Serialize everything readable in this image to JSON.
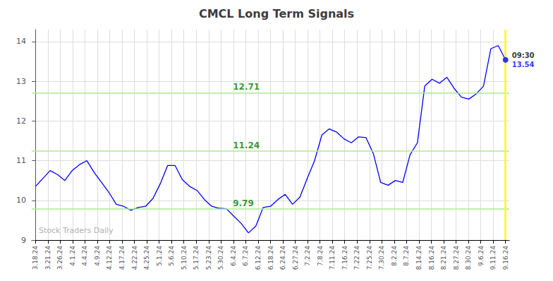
{
  "chart_data": {
    "type": "line",
    "title": "CMCL Long Term Signals",
    "x": [
      0,
      0.59375,
      1.1875,
      1.78125,
      2.375,
      2.96875,
      3.5625,
      4.15625,
      4.75,
      5.34375,
      5.9375,
      6.53125,
      7.125,
      7.71875,
      8.3125,
      8.90625,
      9.5,
      10.09375,
      10.6875,
      11.28125,
      11.875,
      12.46875,
      13.0625,
      13.65625,
      14.25,
      14.84375,
      15.4375,
      16.03125,
      16.625,
      17.21875,
      17.8125,
      18.40625,
      19,
      19.59375,
      20.1875,
      20.78125,
      21.375,
      21.96875,
      22.5625,
      23.15625,
      23.75,
      24.34375,
      24.9375,
      25.53125,
      26.125,
      26.71875,
      27.3125,
      27.90625,
      28.5,
      29.09375,
      29.6875,
      30.28125,
      30.875,
      31.46875,
      32.0625,
      32.65625,
      33.25,
      33.84375,
      34.4375,
      35.03125,
      35.625,
      36.21875,
      36.8125,
      37.40625,
      38
    ],
    "values": [
      10.35,
      10.55,
      10.75,
      10.65,
      10.5,
      10.75,
      10.9,
      11.0,
      10.7,
      10.45,
      10.2,
      9.9,
      9.85,
      9.75,
      9.82,
      9.85,
      10.05,
      10.42,
      10.88,
      10.88,
      10.52,
      10.35,
      10.25,
      10.02,
      9.85,
      9.8,
      9.79,
      9.6,
      9.42,
      9.18,
      9.35,
      9.82,
      9.85,
      10.02,
      10.15,
      9.9,
      10.08,
      10.55,
      11.0,
      11.65,
      11.8,
      11.72,
      11.55,
      11.45,
      11.6,
      11.58,
      11.18,
      10.45,
      10.38,
      10.5,
      10.45,
      11.15,
      11.45,
      12.88,
      13.05,
      12.95,
      13.1,
      12.82,
      12.6,
      12.55,
      12.68,
      12.88,
      13.82,
      13.9,
      13.54
    ],
    "color": "blue",
    "xlim": [
      -0.3,
      38.3
    ],
    "xticks": [
      {
        "value": 0,
        "label": "3.18.24"
      },
      {
        "value": 1,
        "label": "3.21.24"
      },
      {
        "value": 2,
        "label": "3.26.24"
      },
      {
        "value": 3,
        "label": "4.1.24"
      },
      {
        "value": 4,
        "label": "4.4.24"
      },
      {
        "value": 5,
        "label": "4.9.24"
      },
      {
        "value": 6,
        "label": "4.12.24"
      },
      {
        "value": 7,
        "label": "4.17.24"
      },
      {
        "value": 8,
        "label": "4.22.24"
      },
      {
        "value": 9,
        "label": "4.25.24"
      },
      {
        "value": 10,
        "label": "5.1.24"
      },
      {
        "value": 11,
        "label": "5.6.24"
      },
      {
        "value": 12,
        "label": "5.10.24"
      },
      {
        "value": 13,
        "label": "5.17.24"
      },
      {
        "value": 14,
        "label": "5.23.24"
      },
      {
        "value": 15,
        "label": "5.30.24"
      },
      {
        "value": 16,
        "label": "6.4.24"
      },
      {
        "value": 17,
        "label": "6.7.24"
      },
      {
        "value": 18,
        "label": "6.12.24"
      },
      {
        "value": 19,
        "label": "6.18.24"
      },
      {
        "value": 20,
        "label": "6.24.24"
      },
      {
        "value": 21,
        "label": "6.27.24"
      },
      {
        "value": 22,
        "label": "7.2.24"
      },
      {
        "value": 23,
        "label": "7.8.24"
      },
      {
        "value": 24,
        "label": "7.11.24"
      },
      {
        "value": 25,
        "label": "7.16.24"
      },
      {
        "value": 26,
        "label": "7.22.24"
      },
      {
        "value": 27,
        "label": "7.25.24"
      },
      {
        "value": 28,
        "label": "7.30.24"
      },
      {
        "value": 29,
        "label": "8.2.24"
      },
      {
        "value": 30,
        "label": "8.7.24"
      },
      {
        "value": 31,
        "label": "8.14.24"
      },
      {
        "value": 32,
        "label": "8.16.24"
      },
      {
        "value": 33,
        "label": "8.21.24"
      },
      {
        "value": 34,
        "label": "8.27.24"
      },
      {
        "value": 35,
        "label": "8.30.24"
      },
      {
        "value": 36,
        "label": "9.6.24"
      },
      {
        "value": 37,
        "label": "9.11.24"
      },
      {
        "value": 38,
        "label": "9.16.24"
      }
    ],
    "ylim": [
      9.0,
      14.3
    ],
    "yticks": [
      9,
      10,
      11,
      12,
      13,
      14
    ],
    "grid": true,
    "hlines": [
      {
        "y": 9.79,
        "color": "#aaee88",
        "label": "9.79",
        "label_color": "green"
      },
      {
        "y": 11.24,
        "color": "#aaee88",
        "label": "11.24",
        "label_color": "green"
      },
      {
        "y": 12.71,
        "color": "#aaee88",
        "label": "12.71",
        "label_color": "green"
      }
    ],
    "vline": {
      "x": 38,
      "color": "yellow"
    },
    "last_point": {
      "x": 38,
      "y": 13.54,
      "label": "13.54",
      "time": "09:30",
      "color": "blue",
      "time_color": "black"
    },
    "watermark": "Stock Traders Daily"
  }
}
